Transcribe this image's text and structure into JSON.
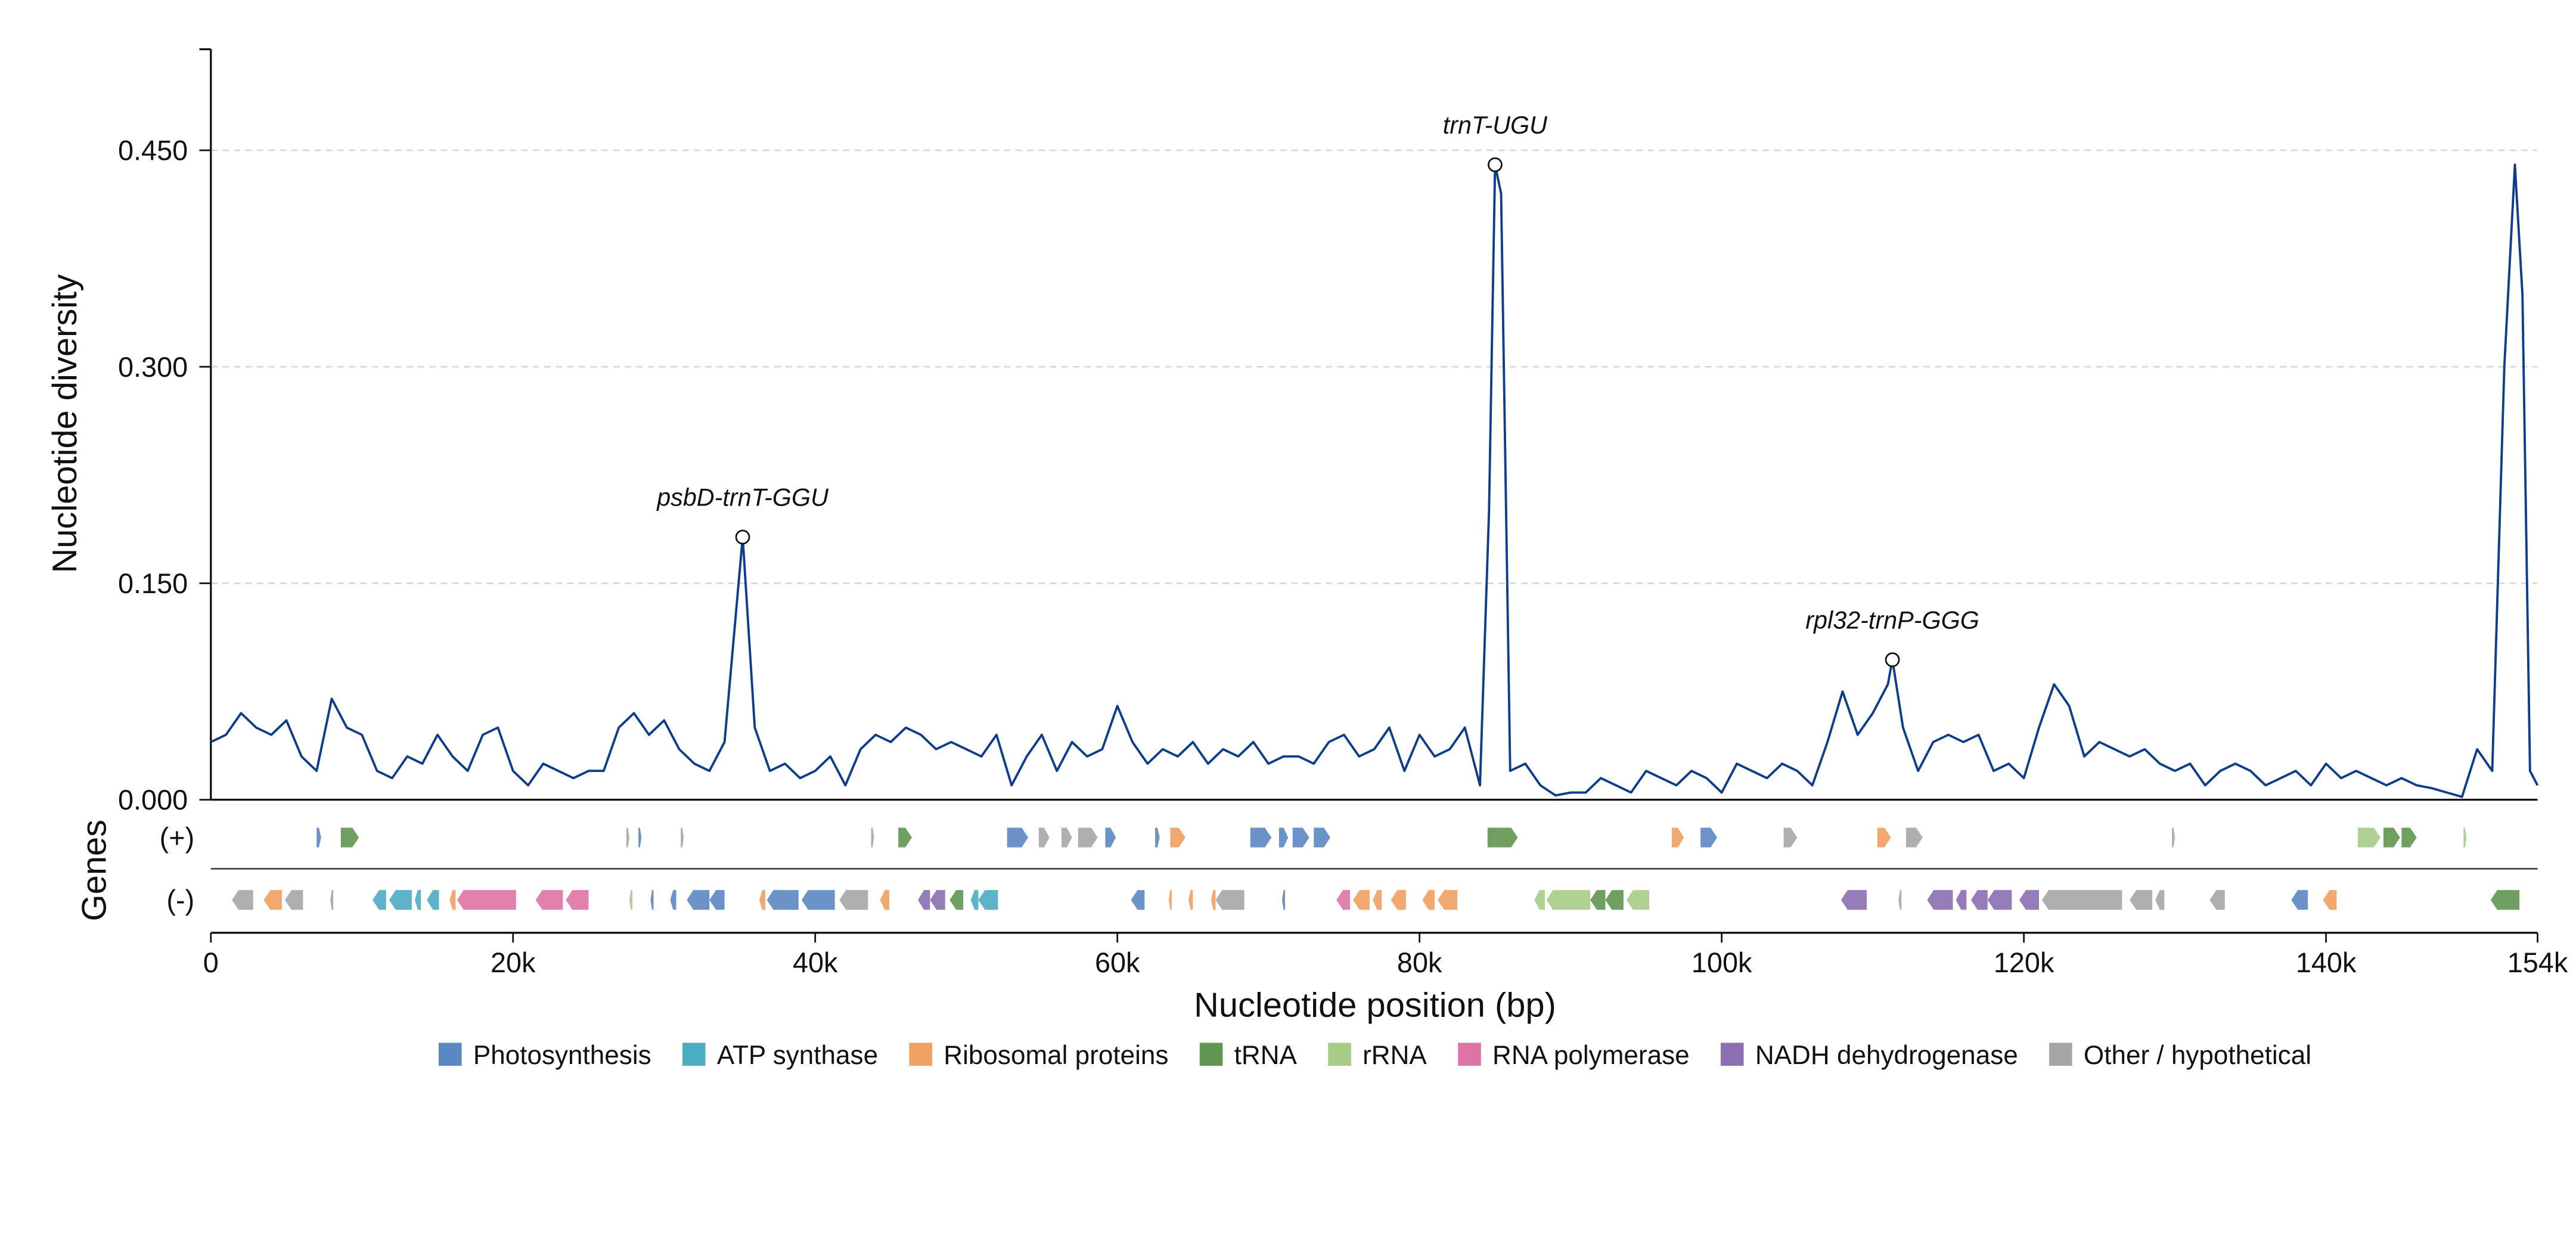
{
  "chart_data": {
    "type": "line",
    "ylabel": "Nucleotide diversity",
    "xlabel": "Nucleotide position (bp)",
    "track_title": "Genes",
    "color": "#0d3d8c",
    "grid": true,
    "ylim": [
      0,
      0.52
    ],
    "yticks": [
      {
        "value": 0,
        "label": "0.000"
      },
      {
        "value": 0.15,
        "label": "0.150"
      },
      {
        "value": 0.3,
        "label": "0.300"
      },
      {
        "value": 0.45,
        "label": "0.450"
      }
    ],
    "xlim": [
      0,
      154000
    ],
    "xticks": [
      {
        "value": 0,
        "label": "0"
      },
      {
        "value": 20000,
        "label": "20k"
      },
      {
        "value": 40000,
        "label": "40k"
      },
      {
        "value": 60000,
        "label": "60k"
      },
      {
        "value": 80000,
        "label": "80k"
      },
      {
        "value": 100000,
        "label": "100k"
      },
      {
        "value": 120000,
        "label": "120k"
      },
      {
        "value": 140000,
        "label": "140k"
      },
      {
        "value": 154000,
        "label": "154k"
      }
    ],
    "x": [
      0,
      1000,
      2000,
      3000,
      4000,
      5000,
      6000,
      7000,
      8000,
      9000,
      10000,
      11000,
      12000,
      13000,
      14000,
      15000,
      16000,
      17000,
      18000,
      19000,
      20000,
      21000,
      22000,
      23000,
      24000,
      25000,
      26000,
      27000,
      28000,
      29000,
      30000,
      31000,
      32000,
      33000,
      34000,
      35200,
      36000,
      37000,
      38000,
      39000,
      40000,
      41000,
      42000,
      43000,
      44000,
      45000,
      46000,
      47000,
      48000,
      49000,
      50000,
      51000,
      52000,
      53000,
      54000,
      55000,
      56000,
      57000,
      58000,
      59000,
      60000,
      61000,
      62000,
      63000,
      64000,
      65000,
      66000,
      67000,
      68000,
      69000,
      70000,
      71000,
      72000,
      73000,
      74000,
      75000,
      76000,
      77000,
      78000,
      79000,
      80000,
      81000,
      82000,
      83000,
      84000,
      84600,
      85000,
      85400,
      86000,
      87000,
      88000,
      89000,
      90000,
      91000,
      92000,
      93000,
      94000,
      95000,
      96000,
      97000,
      98000,
      99000,
      100000,
      101000,
      102000,
      103000,
      104000,
      105000,
      106000,
      107000,
      108000,
      109000,
      110000,
      111000,
      111300,
      112000,
      113000,
      114000,
      115000,
      116000,
      117000,
      118000,
      119000,
      120000,
      121000,
      122000,
      123000,
      124000,
      125000,
      126000,
      127000,
      128000,
      129000,
      130000,
      131000,
      132000,
      133000,
      134000,
      135000,
      136000,
      137000,
      138000,
      139000,
      140000,
      141000,
      142000,
      143000,
      144000,
      145000,
      146000,
      147000,
      148000,
      149000,
      150000,
      151000,
      151800,
      152500,
      153000,
      153500,
      154000
    ],
    "values": [
      0.04,
      0.045,
      0.06,
      0.05,
      0.045,
      0.055,
      0.03,
      0.02,
      0.07,
      0.05,
      0.045,
      0.02,
      0.015,
      0.03,
      0.025,
      0.045,
      0.03,
      0.02,
      0.045,
      0.05,
      0.02,
      0.01,
      0.025,
      0.02,
      0.015,
      0.02,
      0.02,
      0.05,
      0.06,
      0.045,
      0.055,
      0.035,
      0.025,
      0.02,
      0.04,
      0.182,
      0.05,
      0.02,
      0.025,
      0.015,
      0.02,
      0.03,
      0.01,
      0.035,
      0.045,
      0.04,
      0.05,
      0.045,
      0.035,
      0.04,
      0.035,
      0.03,
      0.045,
      0.01,
      0.03,
      0.045,
      0.02,
      0.04,
      0.03,
      0.035,
      0.065,
      0.04,
      0.025,
      0.035,
      0.03,
      0.04,
      0.025,
      0.035,
      0.03,
      0.04,
      0.025,
      0.03,
      0.03,
      0.025,
      0.04,
      0.045,
      0.03,
      0.035,
      0.05,
      0.02,
      0.045,
      0.03,
      0.035,
      0.05,
      0.01,
      0.2,
      0.44,
      0.42,
      0.02,
      0.025,
      0.01,
      0.003,
      0.005,
      0.005,
      0.015,
      0.01,
      0.005,
      0.02,
      0.015,
      0.01,
      0.02,
      0.015,
      0.005,
      0.025,
      0.02,
      0.015,
      0.025,
      0.02,
      0.01,
      0.04,
      0.075,
      0.045,
      0.06,
      0.08,
      0.097,
      0.05,
      0.02,
      0.04,
      0.045,
      0.04,
      0.045,
      0.02,
      0.025,
      0.015,
      0.05,
      0.08,
      0.065,
      0.03,
      0.04,
      0.035,
      0.03,
      0.035,
      0.025,
      0.02,
      0.025,
      0.01,
      0.02,
      0.025,
      0.02,
      0.01,
      0.015,
      0.02,
      0.01,
      0.025,
      0.015,
      0.02,
      0.015,
      0.01,
      0.015,
      0.01,
      0.008,
      0.005,
      0.002,
      0.035,
      0.02,
      0.3,
      0.44,
      0.35,
      0.02,
      0.01
    ],
    "annotations": [
      {
        "text": "psbD-trnT-GGU",
        "x": 35200,
        "y": 0.182
      },
      {
        "text": "trnT-UGU",
        "x": 85000,
        "y": 0.44
      },
      {
        "text": "rpl32-trnP-GGG",
        "x": 111300,
        "y": 0.097
      }
    ],
    "legend": [
      {
        "name": "Photosynthesis",
        "color": "#5b87c2"
      },
      {
        "name": "ATP synthase",
        "color": "#4bacc2"
      },
      {
        "name": "Ribosomal proteins",
        "color": "#f0a060"
      },
      {
        "name": "tRNA",
        "color": "#5f9650"
      },
      {
        "name": "rRNA",
        "color": "#a8cc88"
      },
      {
        "name": "RNA polymerase",
        "color": "#de73a5"
      },
      {
        "name": "NADH dehydrogenase",
        "color": "#8b6fb3"
      },
      {
        "name": "Other / hypothetical",
        "color": "#a6a6a6"
      }
    ],
    "tracks": [
      {
        "label": "(+)",
        "genes": [
          {
            "start": 7000,
            "end": 7300,
            "category": 0
          },
          {
            "start": 8600,
            "end": 9800,
            "category": 3
          },
          {
            "start": 27500,
            "end": 27700,
            "category": 7
          },
          {
            "start": 28300,
            "end": 28500,
            "category": 0
          },
          {
            "start": 31100,
            "end": 31300,
            "category": 7
          },
          {
            "start": 43700,
            "end": 43900,
            "category": 7
          },
          {
            "start": 45500,
            "end": 46400,
            "category": 3
          },
          {
            "start": 52700,
            "end": 54100,
            "category": 0
          },
          {
            "start": 54800,
            "end": 55500,
            "category": 7
          },
          {
            "start": 56300,
            "end": 57000,
            "category": 7
          },
          {
            "start": 57400,
            "end": 58700,
            "category": 7
          },
          {
            "start": 59200,
            "end": 59900,
            "category": 0
          },
          {
            "start": 62500,
            "end": 62800,
            "category": 0
          },
          {
            "start": 63500,
            "end": 64500,
            "category": 2
          },
          {
            "start": 68800,
            "end": 70200,
            "category": 0
          },
          {
            "start": 70700,
            "end": 71300,
            "category": 0
          },
          {
            "start": 71600,
            "end": 72700,
            "category": 0
          },
          {
            "start": 73000,
            "end": 74100,
            "category": 0
          },
          {
            "start": 84500,
            "end": 86500,
            "category": 3
          },
          {
            "start": 96700,
            "end": 97500,
            "category": 2
          },
          {
            "start": 98600,
            "end": 99700,
            "category": 0
          },
          {
            "start": 104100,
            "end": 105000,
            "category": 7
          },
          {
            "start": 110300,
            "end": 111200,
            "category": 2
          },
          {
            "start": 112200,
            "end": 113300,
            "category": 7
          },
          {
            "start": 129800,
            "end": 130000,
            "category": 7
          },
          {
            "start": 142100,
            "end": 143600,
            "category": 4
          },
          {
            "start": 143800,
            "end": 144900,
            "category": 3
          },
          {
            "start": 145000,
            "end": 146000,
            "category": 3
          },
          {
            "start": 149100,
            "end": 149300,
            "category": 4
          }
        ]
      },
      {
        "label": "(-)",
        "genes": [
          {
            "start": 1400,
            "end": 2800,
            "category": 7
          },
          {
            "start": 3500,
            "end": 4700,
            "category": 2
          },
          {
            "start": 4900,
            "end": 6100,
            "category": 7
          },
          {
            "start": 7900,
            "end": 8100,
            "category": 7
          },
          {
            "start": 10700,
            "end": 11600,
            "category": 1
          },
          {
            "start": 11800,
            "end": 13300,
            "category": 1
          },
          {
            "start": 13500,
            "end": 13900,
            "category": 1
          },
          {
            "start": 14300,
            "end": 15100,
            "category": 1
          },
          {
            "start": 15800,
            "end": 16200,
            "category": 2
          },
          {
            "start": 16300,
            "end": 20200,
            "category": 5
          },
          {
            "start": 21500,
            "end": 23300,
            "category": 5
          },
          {
            "start": 23500,
            "end": 25000,
            "category": 5
          },
          {
            "start": 27700,
            "end": 27900,
            "category": 4
          },
          {
            "start": 29100,
            "end": 29300,
            "category": 0
          },
          {
            "start": 30400,
            "end": 30800,
            "category": 0
          },
          {
            "start": 31500,
            "end": 33000,
            "category": 0
          },
          {
            "start": 33000,
            "end": 34000,
            "category": 0
          },
          {
            "start": 36300,
            "end": 36700,
            "category": 2
          },
          {
            "start": 36800,
            "end": 38900,
            "category": 0
          },
          {
            "start": 39100,
            "end": 41300,
            "category": 0
          },
          {
            "start": 41600,
            "end": 43500,
            "category": 7
          },
          {
            "start": 44300,
            "end": 44900,
            "category": 2
          },
          {
            "start": 46800,
            "end": 47600,
            "category": 6
          },
          {
            "start": 47600,
            "end": 48600,
            "category": 6
          },
          {
            "start": 48900,
            "end": 49800,
            "category": 3
          },
          {
            "start": 50300,
            "end": 50800,
            "category": 1
          },
          {
            "start": 50800,
            "end": 52100,
            "category": 1
          },
          {
            "start": 60900,
            "end": 61800,
            "category": 0
          },
          {
            "start": 63400,
            "end": 63600,
            "category": 2
          },
          {
            "start": 64700,
            "end": 65000,
            "category": 2
          },
          {
            "start": 66200,
            "end": 66500,
            "category": 2
          },
          {
            "start": 66500,
            "end": 68400,
            "category": 7
          },
          {
            "start": 70900,
            "end": 71100,
            "category": 0
          },
          {
            "start": 74500,
            "end": 75400,
            "category": 5
          },
          {
            "start": 75600,
            "end": 76700,
            "category": 2
          },
          {
            "start": 76900,
            "end": 77500,
            "category": 2
          },
          {
            "start": 78100,
            "end": 79100,
            "category": 2
          },
          {
            "start": 80200,
            "end": 81000,
            "category": 2
          },
          {
            "start": 81200,
            "end": 82500,
            "category": 2
          },
          {
            "start": 87600,
            "end": 88300,
            "category": 4
          },
          {
            "start": 88400,
            "end": 91300,
            "category": 4
          },
          {
            "start": 91300,
            "end": 92300,
            "category": 3
          },
          {
            "start": 92300,
            "end": 93500,
            "category": 3
          },
          {
            "start": 93700,
            "end": 95200,
            "category": 4
          },
          {
            "start": 107900,
            "end": 109600,
            "category": 6
          },
          {
            "start": 111700,
            "end": 111900,
            "category": 7
          },
          {
            "start": 113600,
            "end": 115300,
            "category": 6
          },
          {
            "start": 115500,
            "end": 116200,
            "category": 6
          },
          {
            "start": 116500,
            "end": 117600,
            "category": 6
          },
          {
            "start": 117600,
            "end": 119200,
            "category": 6
          },
          {
            "start": 119700,
            "end": 121000,
            "category": 6
          },
          {
            "start": 121200,
            "end": 126500,
            "category": 7
          },
          {
            "start": 127000,
            "end": 128500,
            "category": 7
          },
          {
            "start": 128700,
            "end": 129300,
            "category": 7
          },
          {
            "start": 132300,
            "end": 133300,
            "category": 7
          },
          {
            "start": 137700,
            "end": 138800,
            "category": 0
          },
          {
            "start": 139800,
            "end": 140700,
            "category": 2
          },
          {
            "start": 150900,
            "end": 152800,
            "category": 3
          }
        ]
      }
    ]
  }
}
